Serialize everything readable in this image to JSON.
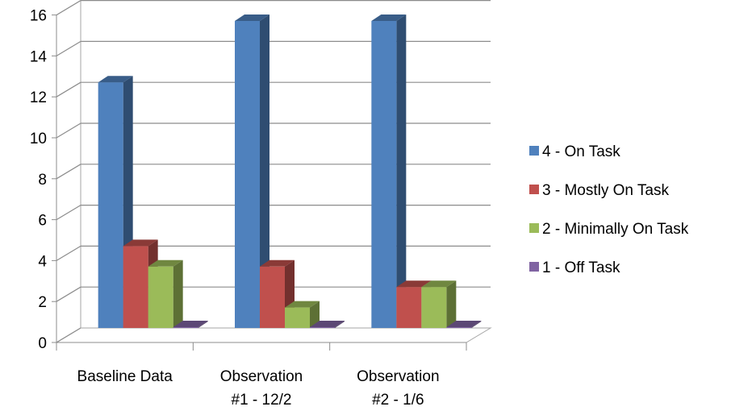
{
  "chart_data": {
    "type": "bar",
    "title": "",
    "xlabel": "",
    "ylabel": "",
    "categories": [
      [
        "Baseline Data"
      ],
      [
        "Observation",
        "#1 - 12/2"
      ],
      [
        "Observation",
        "#2 - 1/6"
      ]
    ],
    "series": [
      {
        "name": "4 - On Task",
        "values": [
          12,
          15,
          15
        ],
        "color": "#4F81BD"
      },
      {
        "name": "3 - Mostly On Task",
        "values": [
          4,
          3,
          2
        ],
        "color": "#C0504D"
      },
      {
        "name": "2 - Minimally On Task",
        "values": [
          3,
          1,
          2
        ],
        "color": "#9BBB59"
      },
      {
        "name": "1 - Off Task",
        "values": [
          0,
          0,
          0
        ],
        "color": "#8064A2"
      }
    ],
    "ylim": [
      0,
      16
    ],
    "yticks": [
      "0",
      "2",
      "4",
      "6",
      "8",
      "10",
      "12",
      "14",
      "16"
    ],
    "grid": true,
    "legend_position": "right",
    "style": "3d-clustered-column"
  }
}
